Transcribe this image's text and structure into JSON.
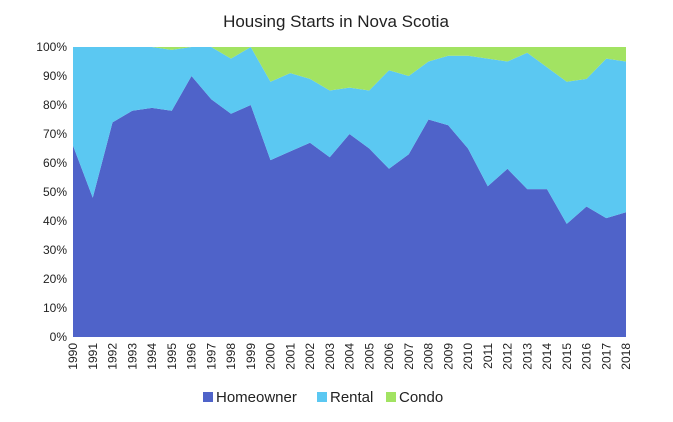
{
  "chart_data": {
    "type": "area",
    "stacked": true,
    "percent": true,
    "title": "Housing Starts in Nova Scotia",
    "xlabel": "",
    "ylabel": "",
    "ylim": [
      0,
      100
    ],
    "yticks": [
      "0%",
      "10%",
      "20%",
      "30%",
      "40%",
      "50%",
      "60%",
      "70%",
      "80%",
      "90%",
      "100%"
    ],
    "categories": [
      "1990",
      "1991",
      "1992",
      "1993",
      "1994",
      "1995",
      "1996",
      "1997",
      "1998",
      "1999",
      "2000",
      "2001",
      "2002",
      "2003",
      "2004",
      "2005",
      "2006",
      "2007",
      "2008",
      "2009",
      "2010",
      "2011",
      "2012",
      "2013",
      "2014",
      "2015",
      "2016",
      "2017",
      "2018"
    ],
    "series": [
      {
        "name": "Homeowner",
        "color": "#4f63c9",
        "values": [
          66,
          48,
          74,
          78,
          79,
          78,
          90,
          82,
          77,
          80,
          61,
          64,
          67,
          62,
          70,
          65,
          58,
          63,
          75,
          73,
          65,
          52,
          58,
          51,
          51,
          39,
          45,
          41,
          43
        ]
      },
      {
        "name": "Rental",
        "color": "#5bc8f2",
        "values": [
          34,
          52,
          26,
          22,
          21,
          21,
          10,
          18,
          19,
          20,
          27,
          27,
          22,
          23,
          16,
          20,
          34,
          27,
          20,
          24,
          32,
          44,
          37,
          47,
          42,
          49,
          44,
          55,
          52
        ]
      },
      {
        "name": "Condo",
        "color": "#a2e362",
        "values": [
          0,
          0,
          0,
          0,
          0,
          1,
          0,
          0,
          4,
          0,
          12,
          9,
          11,
          15,
          14,
          15,
          8,
          10,
          5,
          3,
          3,
          4,
          5,
          2,
          7,
          12,
          11,
          4,
          5
        ]
      }
    ],
    "legend_position": "bottom",
    "grid": false
  }
}
